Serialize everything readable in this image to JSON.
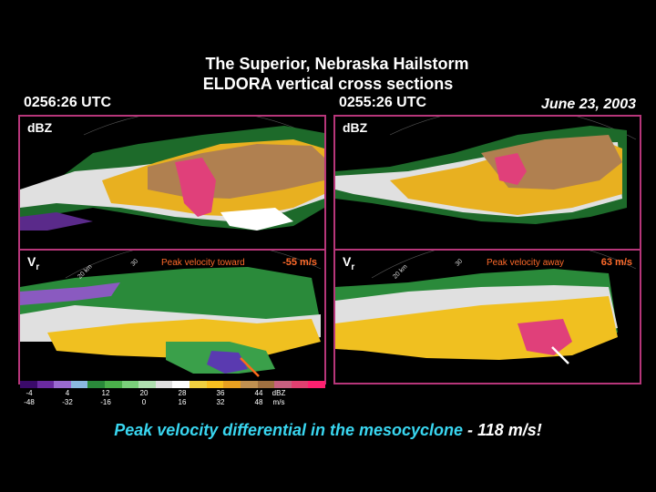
{
  "title": "The Superior, Nebraska Hailstorm",
  "subtitle": "ELDORA vertical cross sections",
  "left_time": "0256:26 UTC",
  "right_time": "0255:26 UTC",
  "date": "June 23, 2003",
  "panels": {
    "dbz_label": "dBZ",
    "vr_label": "V",
    "vr_sub": "r",
    "range_20": "20 km",
    "range_30": "30",
    "left_vr_peak_text": "Peak velocity toward",
    "left_vr_peak_value": "-55 m/s",
    "right_vr_peak_text": "Peak velocity away",
    "right_vr_peak_value": "63 m/s"
  },
  "colorbar": {
    "colors": [
      "#3a0a6a",
      "#6a2aa0",
      "#9a6ad0",
      "#8ab8e0",
      "#2a8a3a",
      "#4ab04a",
      "#7ad07a",
      "#b0e0b0",
      "#e0e0e0",
      "#ffffff",
      "#f0d040",
      "#f8c020",
      "#e8a020",
      "#c09050",
      "#a07040",
      "#c86080",
      "#e04070",
      "#ff2070"
    ],
    "dbz_ticks": [
      "-4",
      "4",
      "12",
      "20",
      "28",
      "36",
      "44"
    ],
    "dbz_unit": "dBZ",
    "ms_ticks": [
      "-48",
      "-32",
      "-16",
      "0",
      "16",
      "32",
      "48"
    ],
    "ms_unit": "m/s"
  },
  "caption_cyan": "Peak velocity differential in the mesocyclone",
  "caption_white": " - 118 m/s!"
}
